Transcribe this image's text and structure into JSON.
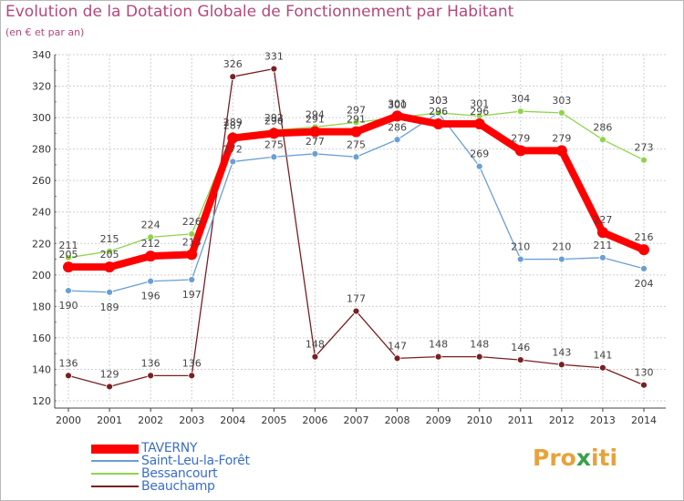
{
  "title": "Evolution de la Dotation Globale de Fonctionnement par Habitant",
  "subtitle": "(en € et par an)",
  "logo": {
    "parts": [
      "Pro",
      "x",
      "iti"
    ],
    "colors": [
      "#e8a23b",
      "#3aa04a",
      "#e8a23b"
    ]
  },
  "chart_data": {
    "type": "line",
    "x": [
      "2000",
      "2001",
      "2002",
      "2003",
      "2004",
      "2005",
      "2006",
      "2007",
      "2008",
      "2009",
      "2010",
      "2011",
      "2012",
      "2013",
      "2014"
    ],
    "ylim": [
      120,
      340
    ],
    "yticks": [
      120,
      140,
      160,
      180,
      200,
      220,
      240,
      260,
      280,
      300,
      320,
      340
    ],
    "grid": true,
    "legend_position": "bottom-left",
    "series": [
      {
        "name": "TAVERNY",
        "color": "#ff0000",
        "values": [
          205,
          205,
          212,
          213,
          287,
          290,
          291,
          291,
          301,
          296,
          296,
          279,
          279,
          227,
          216
        ]
      },
      {
        "name": "Saint-Leu-la-Forêt",
        "color": "#6a9fd4",
        "values": [
          190,
          189,
          196,
          197,
          272,
          275,
          277,
          275,
          286,
          303,
          269,
          210,
          210,
          211,
          204
        ]
      },
      {
        "name": "Bessancourt",
        "color": "#8ed44b",
        "values": [
          211,
          215,
          224,
          226,
          289,
          292,
          294,
          297,
          300,
          303,
          301,
          304,
          303,
          286,
          273
        ]
      },
      {
        "name": "Beauchamp",
        "color": "#7a1f22",
        "values": [
          136,
          129,
          136,
          136,
          326,
          331,
          148,
          177,
          147,
          148,
          148,
          146,
          143,
          141,
          130
        ]
      }
    ]
  }
}
